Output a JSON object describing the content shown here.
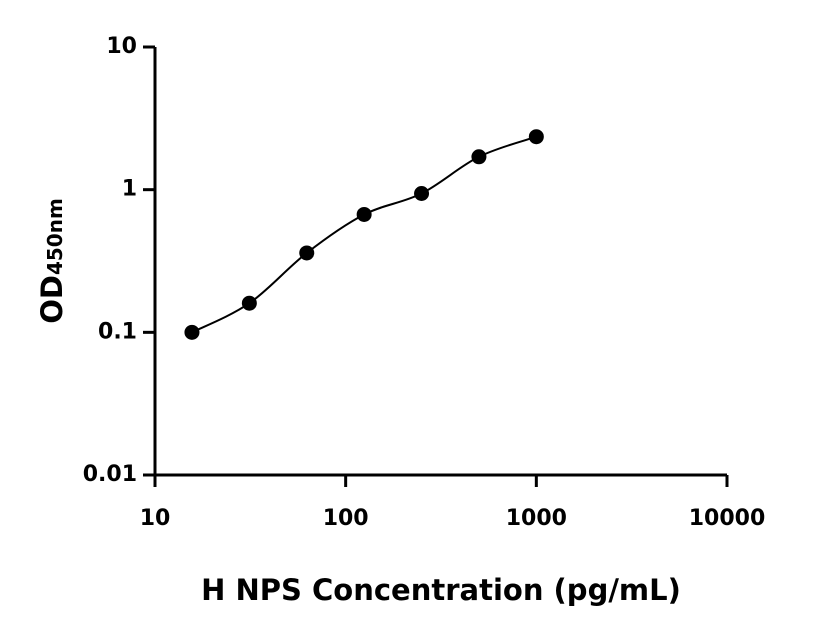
{
  "chart_data": {
    "type": "scatter",
    "x_label": "H NPS Concentration (pg/mL)",
    "y_label": "OD",
    "y_label_sub": "450nm",
    "x": [
      15.625,
      31.25,
      62.5,
      125,
      250,
      500,
      1000
    ],
    "values": [
      0.1,
      0.16,
      0.36,
      0.67,
      0.94,
      1.7,
      2.35
    ],
    "color": "#000000",
    "fit_line": true,
    "xlog": true,
    "ylog": true,
    "xlim": [
      10,
      10000
    ],
    "ylim": [
      0.01,
      10
    ],
    "xticks": [
      10,
      100,
      1000,
      10000
    ],
    "yticks": [
      0.01,
      0.1,
      1,
      10
    ]
  }
}
